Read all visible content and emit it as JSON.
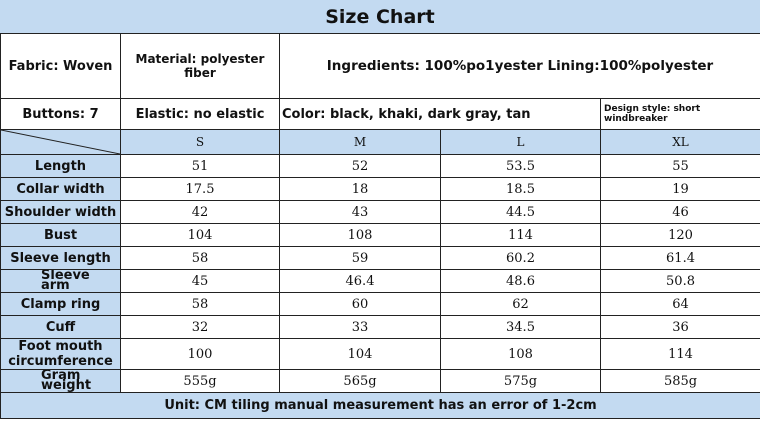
{
  "title": "Size Chart",
  "info": {
    "fabric": "Fabric: Woven",
    "material": "Material: polyester fiber",
    "ingredients": "Ingredients: 100%po1yester Lining:100%polyester",
    "buttons": "Buttons: 7",
    "elastic": "Elastic: no elastic",
    "color": "Color: black, khaki, dark gray, tan",
    "design_style": "Design style: short windbreaker"
  },
  "sizes": [
    "S",
    "M",
    "L",
    "XL"
  ],
  "rows": [
    {
      "label": "Length",
      "values": [
        "51",
        "52",
        "53.5",
        "55"
      ]
    },
    {
      "label": "Collar width",
      "values": [
        "17.5",
        "18",
        "18.5",
        "19"
      ]
    },
    {
      "label": "Shoulder width",
      "values": [
        "42",
        "43",
        "44.5",
        "46"
      ]
    },
    {
      "label": "Bust",
      "values": [
        "104",
        "108",
        "114",
        "120"
      ]
    },
    {
      "label": "Sleeve length",
      "values": [
        "58",
        "59",
        "60.2",
        "61.4"
      ]
    },
    {
      "label": "Sleeve arm",
      "values": [
        "45",
        "46.4",
        "48.6",
        "50.8"
      ]
    },
    {
      "label": "Clamp ring",
      "values": [
        "58",
        "60",
        "62",
        "64"
      ]
    },
    {
      "label": "Cuff",
      "values": [
        "32",
        "33",
        "34.5",
        "36"
      ]
    },
    {
      "label": "Foot mouth circumference",
      "values": [
        "100",
        "104",
        "108",
        "114"
      ]
    },
    {
      "label": "Gram weight",
      "values": [
        "555g",
        "565g",
        "575g",
        "585g"
      ]
    }
  ],
  "footer": "Unit: CM tiling manual measurement has an error of 1-2cm"
}
